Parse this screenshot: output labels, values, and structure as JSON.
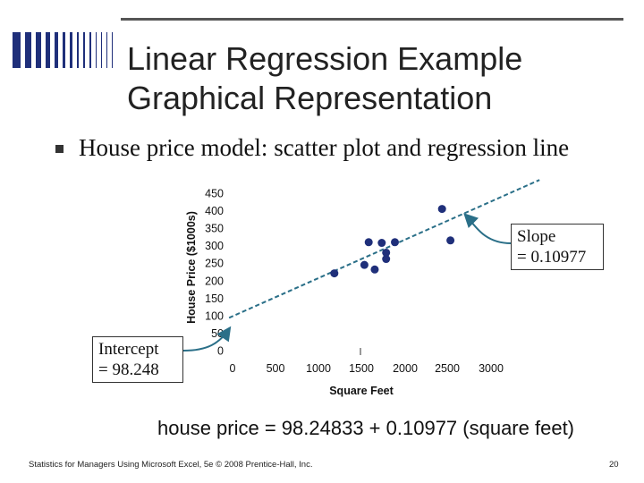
{
  "slide": {
    "title_line1": "Linear Regression Example",
    "title_line2": "Graphical Representation",
    "bullet": "House price model:  scatter plot and regression line",
    "intercept_line1": "Intercept",
    "intercept_line2": "= 98.248",
    "slope_line1": "Slope",
    "slope_line2": "= 0.10977",
    "equation": "house price = 98.24833 + 0.10977 (square feet)",
    "footer": "Statistics for Managers Using Microsoft Excel, 5e © 2008 Prentice-Hall, Inc.",
    "page_number": "20"
  },
  "colors": {
    "points": "#1f2f7a",
    "regression_line": "#2a6f88",
    "deco_bars": "#1f2f7a"
  },
  "chart_data": {
    "type": "scatter",
    "xlabel": "Square Feet",
    "ylabel": "House Price ($1000s)",
    "xlim": [
      0,
      3000
    ],
    "ylim": [
      0,
      450
    ],
    "x_ticks": [
      "0",
      "500",
      "1000",
      "1500",
      "2000",
      "2500",
      "3000"
    ],
    "y_ticks": [
      "0",
      "50",
      "100",
      "150",
      "200",
      "250",
      "300",
      "350",
      "400",
      "450"
    ],
    "points": [
      {
        "x": 1050,
        "y": 221
      },
      {
        "x": 1400,
        "y": 245
      },
      {
        "x": 1450,
        "y": 310
      },
      {
        "x": 1520,
        "y": 232
      },
      {
        "x": 1600,
        "y": 308
      },
      {
        "x": 1650,
        "y": 262
      },
      {
        "x": 1650,
        "y": 280
      },
      {
        "x": 1750,
        "y": 310
      },
      {
        "x": 2300,
        "y": 405
      },
      {
        "x": 2400,
        "y": 315
      }
    ],
    "regression": {
      "intercept": 98.24833,
      "slope": 0.10977,
      "x_start": -40,
      "x_end": 3550
    }
  }
}
